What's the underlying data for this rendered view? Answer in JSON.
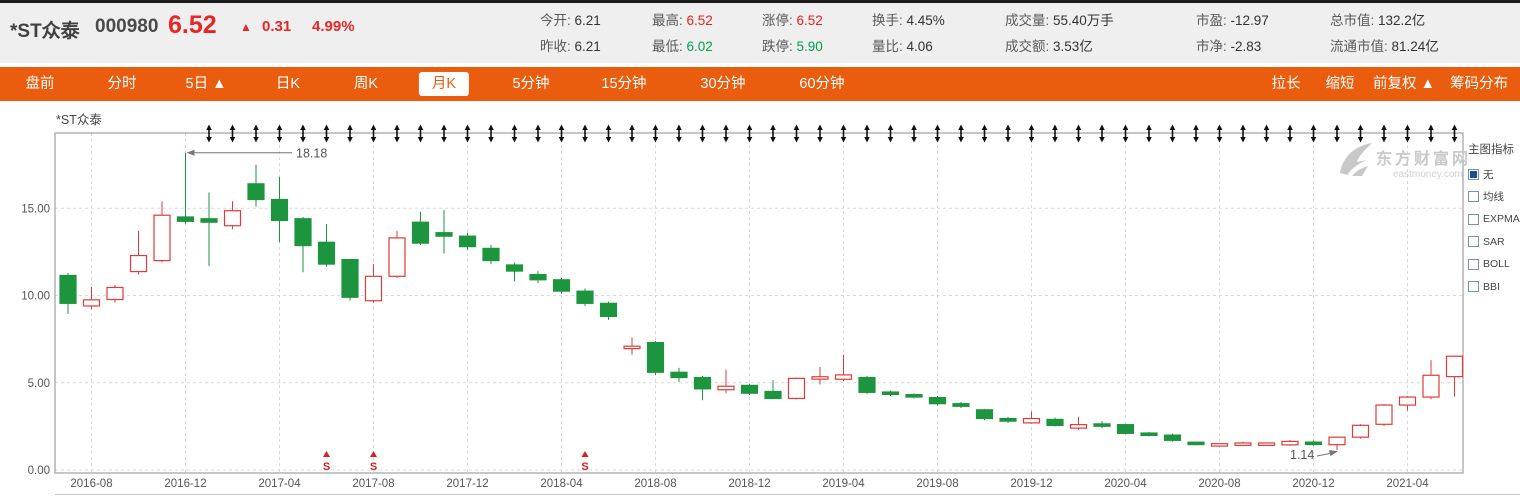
{
  "header": {
    "stock_name": "*ST众泰",
    "stock_code": "000980",
    "price": "6.52",
    "up_arrow": "▲",
    "change": "0.31",
    "change_pct": "4.99%",
    "stat_columns": [
      {
        "rows": [
          {
            "label": "今开:",
            "value": "6.21",
            "cls": "dark"
          },
          {
            "label": "昨收:",
            "value": "6.21",
            "cls": "dark"
          }
        ]
      },
      {
        "rows": [
          {
            "label": "最高:",
            "value": "6.52",
            "cls": "red"
          },
          {
            "label": "最低:",
            "value": "6.02",
            "cls": "green"
          }
        ]
      },
      {
        "rows": [
          {
            "label": "涨停:",
            "value": "6.52",
            "cls": "red"
          },
          {
            "label": "跌停:",
            "value": "5.90",
            "cls": "green"
          }
        ]
      },
      {
        "rows": [
          {
            "label": "换手:",
            "value": "4.45%",
            "cls": "dark"
          },
          {
            "label": "量比:",
            "value": "4.06",
            "cls": "dark"
          }
        ]
      },
      {
        "rows": [
          {
            "label": "成交量:",
            "value": "55.40万手",
            "cls": "dark"
          },
          {
            "label": "成交额:",
            "value": "3.53亿",
            "cls": "dark"
          }
        ]
      },
      {
        "rows": [
          {
            "label": "市盈:",
            "value": "-12.97",
            "cls": "dark"
          },
          {
            "label": "市净:",
            "value": "-2.83",
            "cls": "dark"
          }
        ]
      },
      {
        "rows": [
          {
            "label": "总市值:",
            "value": "132.2亿",
            "cls": "dark"
          },
          {
            "label": "流通市值:",
            "value": "81.24亿",
            "cls": "dark"
          }
        ]
      }
    ]
  },
  "nav": {
    "tabs": [
      {
        "key": "panqian",
        "label": "盘前",
        "active": false
      },
      {
        "key": "fenshi",
        "label": "分时",
        "active": false
      },
      {
        "key": "5day",
        "label": "5日 ▲",
        "active": false
      },
      {
        "key": "day-k",
        "label": "日K",
        "active": false
      },
      {
        "key": "week-k",
        "label": "周K",
        "active": false
      },
      {
        "key": "month-k",
        "label": "月K",
        "active": true
      },
      {
        "key": "5min",
        "label": "5分钟",
        "active": false
      },
      {
        "key": "15min",
        "label": "15分钟",
        "active": false
      },
      {
        "key": "30min",
        "label": "30分钟",
        "active": false
      },
      {
        "key": "60min",
        "label": "60分钟",
        "active": false
      }
    ],
    "right_tabs": [
      {
        "key": "lengthen",
        "label": "拉长"
      },
      {
        "key": "shorten",
        "label": "缩短"
      },
      {
        "key": "qfq",
        "label": "前复权 ▲"
      },
      {
        "key": "chip-distribution",
        "label": "筹码分布"
      }
    ]
  },
  "chart": {
    "title": "*ST众泰",
    "watermark_line1": "东方财富网",
    "watermark_line2": "eastmoney.com",
    "legend_title": "主图指标",
    "legend_items": [
      {
        "label": "无",
        "checked": true
      },
      {
        "label": "均线",
        "checked": false
      },
      {
        "label": "EXPMA",
        "checked": false
      },
      {
        "label": "SAR",
        "checked": false
      },
      {
        "label": "BOLL",
        "checked": false
      },
      {
        "label": "BBI",
        "checked": false
      }
    ]
  },
  "chart_data": {
    "type": "candlestick",
    "title": "*ST众泰 月K (monthly candles)",
    "ylim": [
      0,
      19.3
    ],
    "y_ticks": [
      {
        "value": 15,
        "label": "15.00"
      },
      {
        "value": 10,
        "label": "10.00"
      },
      {
        "value": 5,
        "label": "5.00"
      },
      {
        "value": 0,
        "label": "0.00"
      }
    ],
    "x_tick_labels": [
      "2016-08",
      "2016-12",
      "2017-04",
      "2017-08",
      "2017-12",
      "2018-04",
      "2018-08",
      "2018-12",
      "2019-04",
      "2019-08",
      "2019-12",
      "2020-04",
      "2020-08",
      "2020-12",
      "2021-04"
    ],
    "months": [
      "2016-07",
      "2016-08",
      "2016-09",
      "2016-10",
      "2016-11",
      "2016-12",
      "2017-01",
      "2017-02",
      "2017-03",
      "2017-04",
      "2017-05",
      "2017-06",
      "2017-07",
      "2017-08",
      "2017-09",
      "2017-10",
      "2017-11",
      "2017-12",
      "2018-01",
      "2018-02",
      "2018-03",
      "2018-04",
      "2018-05",
      "2018-06",
      "2018-07",
      "2018-08",
      "2018-09",
      "2018-10",
      "2018-11",
      "2018-12",
      "2019-01",
      "2019-02",
      "2019-03",
      "2019-04",
      "2019-05",
      "2019-06",
      "2019-07",
      "2019-08",
      "2019-09",
      "2019-10",
      "2019-11",
      "2019-12",
      "2020-01",
      "2020-02",
      "2020-03",
      "2020-04",
      "2020-05",
      "2020-06",
      "2020-07",
      "2020-08",
      "2020-09",
      "2020-10",
      "2020-11",
      "2020-12",
      "2021-01",
      "2021-02",
      "2021-03",
      "2021-04",
      "2021-05",
      "2021-06"
    ],
    "ohlc": [
      [
        11.15,
        11.3,
        8.95,
        9.55
      ],
      [
        9.4,
        10.5,
        9.2,
        9.75
      ],
      [
        9.77,
        10.6,
        9.6,
        10.46
      ],
      [
        11.37,
        13.7,
        11.2,
        12.29
      ],
      [
        12.0,
        15.4,
        11.9,
        14.6
      ],
      [
        14.5,
        18.18,
        14.1,
        14.25
      ],
      [
        14.4,
        15.9,
        11.7,
        14.2
      ],
      [
        14.0,
        15.4,
        13.8,
        14.86
      ],
      [
        16.4,
        17.5,
        15.1,
        15.5
      ],
      [
        15.5,
        16.8,
        13.05,
        14.3
      ],
      [
        14.4,
        14.5,
        11.33,
        12.86
      ],
      [
        13.05,
        14.1,
        11.66,
        11.8
      ],
      [
        12.06,
        12.1,
        9.7,
        9.9
      ],
      [
        9.7,
        11.8,
        9.6,
        11.1
      ],
      [
        11.1,
        13.7,
        11.0,
        13.3
      ],
      [
        14.2,
        14.8,
        12.9,
        13.0
      ],
      [
        13.6,
        14.9,
        12.4,
        13.4
      ],
      [
        13.4,
        13.6,
        12.6,
        12.8
      ],
      [
        12.7,
        12.9,
        11.8,
        12.0
      ],
      [
        11.75,
        11.9,
        10.8,
        11.4
      ],
      [
        11.2,
        11.4,
        10.7,
        10.9
      ],
      [
        10.9,
        11.0,
        10.1,
        10.25
      ],
      [
        10.25,
        10.4,
        9.4,
        9.55
      ],
      [
        9.55,
        9.65,
        8.6,
        8.8
      ],
      [
        7.0,
        7.6,
        6.6,
        7.05
      ],
      [
        7.3,
        7.4,
        5.45,
        5.6
      ],
      [
        5.6,
        5.85,
        5.05,
        5.3
      ],
      [
        5.3,
        5.4,
        4.0,
        4.65
      ],
      [
        4.6,
        5.75,
        4.4,
        4.8
      ],
      [
        4.85,
        4.95,
        4.3,
        4.4
      ],
      [
        4.5,
        5.15,
        4.05,
        4.1
      ],
      [
        4.1,
        5.3,
        4.05,
        5.25
      ],
      [
        5.25,
        5.9,
        4.9,
        5.3
      ],
      [
        5.2,
        6.6,
        5.1,
        5.45
      ],
      [
        5.3,
        5.4,
        4.35,
        4.45
      ],
      [
        4.45,
        4.55,
        4.25,
        4.35
      ],
      [
        4.3,
        4.4,
        4.1,
        4.2
      ],
      [
        4.15,
        4.25,
        3.7,
        3.8
      ],
      [
        3.8,
        3.9,
        3.55,
        3.65
      ],
      [
        3.45,
        3.5,
        2.85,
        2.95
      ],
      [
        2.95,
        3.05,
        2.7,
        2.8
      ],
      [
        2.7,
        3.35,
        2.65,
        2.95
      ],
      [
        2.9,
        3.0,
        2.5,
        2.55
      ],
      [
        2.4,
        3.05,
        2.3,
        2.6
      ],
      [
        2.6,
        2.8,
        2.4,
        2.55
      ],
      [
        2.6,
        2.65,
        2.05,
        2.1
      ],
      [
        2.1,
        2.18,
        1.92,
        2.0
      ],
      [
        2.0,
        2.08,
        1.62,
        1.7
      ],
      [
        1.55,
        1.62,
        1.42,
        1.5
      ],
      [
        1.42,
        1.5,
        1.38,
        1.46
      ],
      [
        1.44,
        1.62,
        1.38,
        1.52
      ],
      [
        1.46,
        1.55,
        1.4,
        1.5
      ],
      [
        1.44,
        1.72,
        1.38,
        1.64
      ],
      [
        1.6,
        1.68,
        1.38,
        1.46
      ],
      [
        1.45,
        1.92,
        1.14,
        1.88
      ],
      [
        1.88,
        2.62,
        1.8,
        2.56
      ],
      [
        2.62,
        3.78,
        2.52,
        3.72
      ],
      [
        3.72,
        4.25,
        3.4,
        4.18
      ],
      [
        4.18,
        6.3,
        4.05,
        5.43
      ],
      [
        5.35,
        6.52,
        4.2,
        6.52
      ]
    ],
    "colors": {
      "up": "#e23a36",
      "down": "#1d953f",
      "grid": "#d9d9d9",
      "border": "#8c8c8c",
      "axis_text": "#555"
    },
    "grid": true,
    "event_markers": {
      "glyph": "S",
      "months": [
        "2017-06",
        "2017-08",
        "2018-05"
      ],
      "color": "#d42222"
    },
    "top_arrow_markers": {
      "start_month": "2017-01",
      "end_month": "2021-06"
    },
    "high_annotation": {
      "label": "18.18",
      "month": "2016-12",
      "value": 18.18
    },
    "low_annotation": {
      "label": "1.14",
      "month": "2021-01",
      "value": 1.14
    }
  }
}
